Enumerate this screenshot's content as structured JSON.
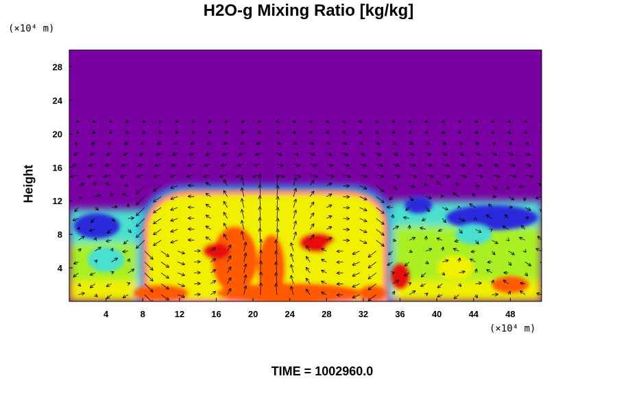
{
  "chart_data": {
    "type": "heatmap",
    "title": "H2O-g Mixing Ratio [kg/kg]",
    "ylabel": "Height",
    "xlabel": "",
    "x_unit": "(×10⁴ m)",
    "y_unit": "(×10⁴ m)",
    "footer": "TIME = 1002960.0",
    "xlim": [
      0,
      51.4
    ],
    "ylim": [
      0,
      30
    ],
    "x_ticks": [
      4,
      8,
      12,
      16,
      20,
      24,
      28,
      32,
      36,
      40,
      44,
      48
    ],
    "y_ticks": [
      4,
      8,
      12,
      16,
      20,
      24,
      28
    ],
    "colormap": [
      "#7b00a3",
      "#2b2bdc",
      "#2aa6f0",
      "#48e0d0",
      "#3fe03f",
      "#a8f020",
      "#f0f000",
      "#ffbb00",
      "#ff5a00",
      "#e81010",
      "#f4a0a0"
    ],
    "background_color": "#7b00a3",
    "vector_overlay": true,
    "regions": [
      {
        "name": "moist-layer-left",
        "x": [
          0,
          9
        ],
        "y": [
          0,
          11
        ],
        "level": 0.55
      },
      {
        "name": "cloud-dome",
        "x": [
          7.5,
          35
        ],
        "y": [
          0,
          13.5
        ],
        "level": 0.7
      },
      {
        "name": "moist-layer-right",
        "x": [
          35,
          51.4
        ],
        "y": [
          0,
          12
        ],
        "level": 0.5
      },
      {
        "name": "upper-dry-air",
        "x": [
          0,
          51.4
        ],
        "y": [
          14,
          30
        ],
        "level": 0.0
      }
    ]
  }
}
